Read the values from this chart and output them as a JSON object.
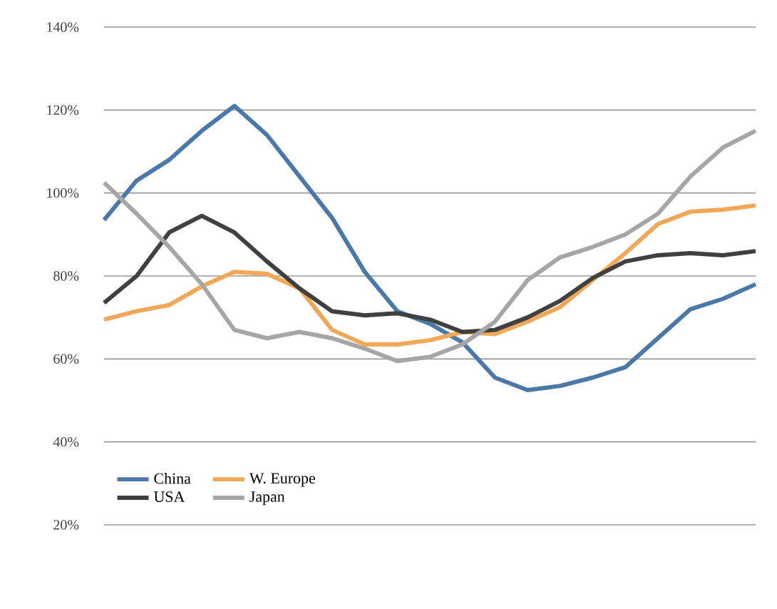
{
  "chart_data": {
    "type": "line",
    "categories": [
      null,
      null,
      null,
      null,
      null,
      null,
      null,
      null,
      null,
      null,
      null,
      null,
      null,
      null,
      null,
      null,
      null,
      null,
      null,
      null,
      null
    ],
    "series": [
      {
        "name": "China",
        "color": "#4a78a8",
        "values": [
          93.5,
          103,
          108,
          115,
          121,
          114,
          104,
          94,
          81,
          71.5,
          68.5,
          64,
          55.5,
          52.5,
          53.5,
          55.5,
          58,
          65,
          72,
          74.5,
          78
        ]
      },
      {
        "name": "W. Europe",
        "color": "#f0a858",
        "values": [
          69.5,
          71.5,
          73,
          77.5,
          81,
          80.5,
          77,
          67,
          63.5,
          63.5,
          64.5,
          66.5,
          66,
          69,
          72.5,
          79,
          85.5,
          92.5,
          95.5,
          96,
          97
        ]
      },
      {
        "name": "USA",
        "color": "#404040",
        "values": [
          73.5,
          80,
          90.5,
          94.5,
          90.5,
          83.5,
          77,
          71.5,
          70.5,
          71,
          69.5,
          66.5,
          67,
          70,
          74,
          79.5,
          83.5,
          85,
          85.5,
          85,
          86
        ]
      },
      {
        "name": "Japan",
        "color": "#a6a6a6",
        "values": [
          102.5,
          95,
          87,
          78,
          67,
          65,
          66.5,
          65,
          62.5,
          59.5,
          60.5,
          63.5,
          69,
          79,
          84.5,
          87,
          90,
          95,
          104,
          111,
          115
        ]
      }
    ],
    "ylim": [
      20,
      140
    ],
    "yticks": [
      {
        "value": 20,
        "label": "20%"
      },
      {
        "value": 40,
        "label": "40%"
      },
      {
        "value": 60,
        "label": "60%"
      },
      {
        "value": 80,
        "label": "80%"
      },
      {
        "value": 100,
        "label": "100%"
      },
      {
        "value": 120,
        "label": "120%"
      },
      {
        "value": 140,
        "label": "140%"
      }
    ],
    "grid": "y",
    "legend": "bottom left",
    "tick_labels": "y"
  }
}
